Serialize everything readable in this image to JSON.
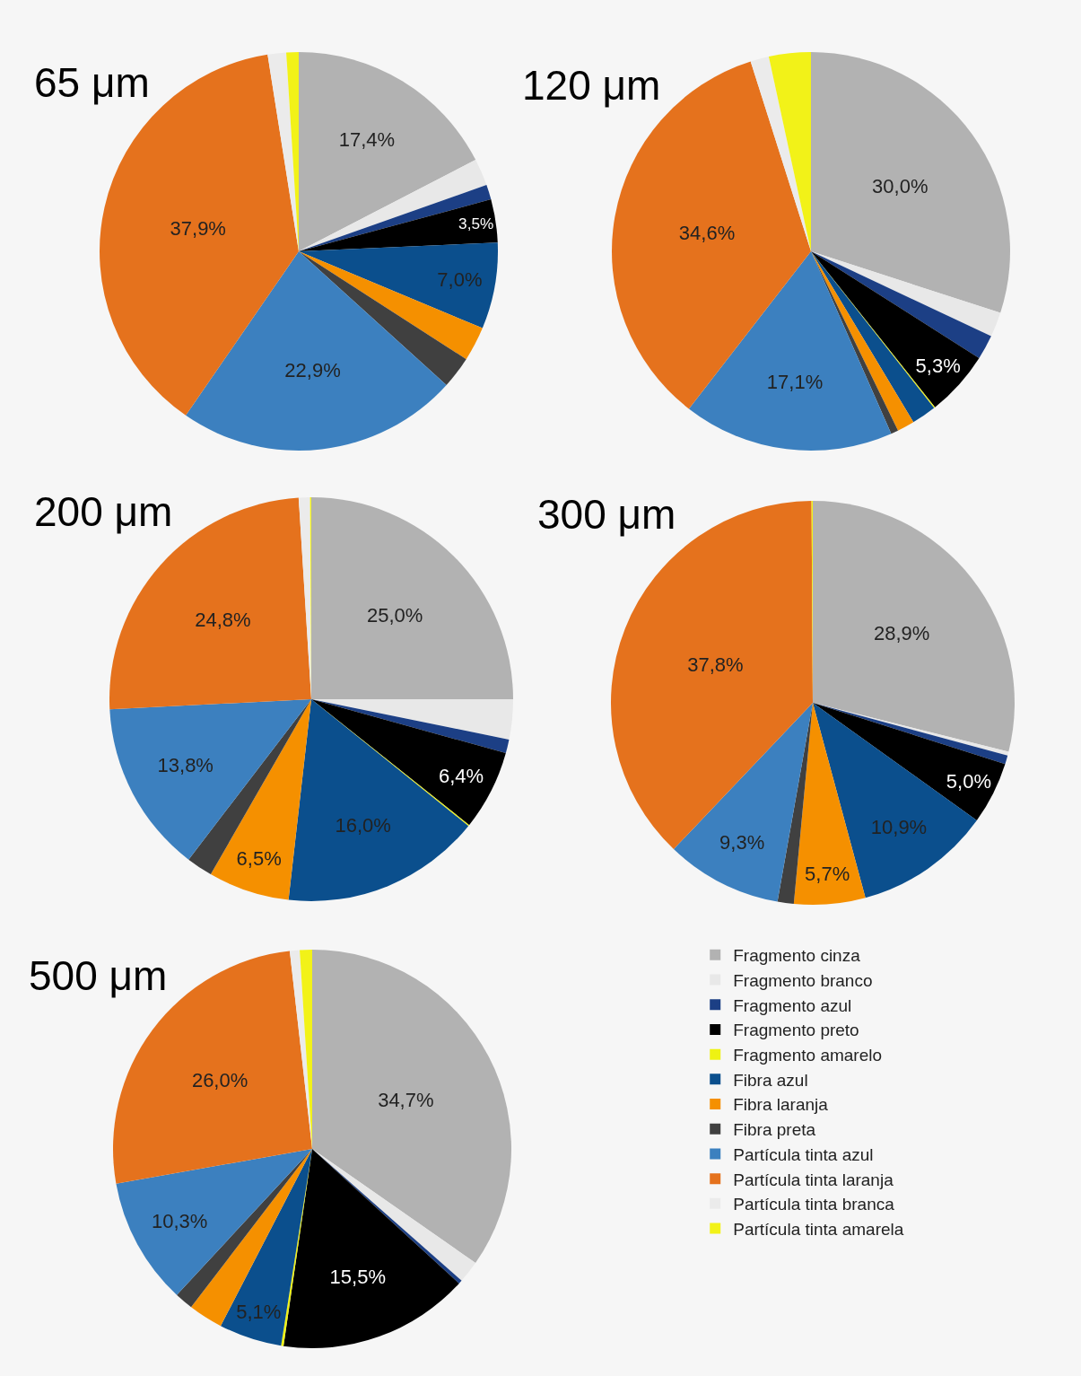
{
  "chart_data": [
    {
      "type": "pie",
      "title": "65 μm",
      "legend": "bottom right",
      "categories": [
        "Fragmento cinza",
        "Fragmento branco",
        "Fragmento azul",
        "Fragmento preto",
        "Fragmento amarelo",
        "Fibra azul",
        "Fibra laranja",
        "Fibra preta",
        "Partícula tinta azul",
        "Partícula tinta laranja",
        "Partícula tinta branca",
        "Partícula tinta amarela"
      ],
      "values": [
        17.4,
        2.2,
        1.2,
        3.5,
        0,
        7.0,
        2.8,
        2.6,
        22.9,
        37.9,
        1.5,
        1.0
      ],
      "value_labels": [
        "17,4%",
        null,
        null,
        "3,5%",
        null,
        "7,0%",
        null,
        null,
        "22,9%",
        "37,9%",
        null,
        null
      ],
      "colors": [
        "#b2b2b2",
        "#e8e8e8",
        "#1c3f85",
        "#000000",
        "#eef213",
        "#0b4f8d",
        "#f59000",
        "#404040",
        "#3c80bf",
        "#e5721d",
        "#ebebeb",
        "#f2f218"
      ]
    },
    {
      "type": "pie",
      "title": "120 μm",
      "legend": false,
      "categories": [
        null,
        null,
        null,
        null,
        null,
        null,
        null,
        null,
        null,
        null,
        null,
        null
      ],
      "values": [
        30.0,
        2.0,
        2.0,
        5.3,
        0.1,
        2.0,
        1.4,
        0.6,
        17.1,
        34.6,
        1.5,
        3.4
      ],
      "value_labels": [
        "30,0%",
        null,
        null,
        "5,3%",
        null,
        null,
        null,
        null,
        "17,1%",
        "34,6%",
        null,
        null
      ],
      "colors": [
        "#b2b2b2",
        "#e8e8e8",
        "#1c3f85",
        "#000000",
        "#eef213",
        "#0b4f8d",
        "#f59000",
        "#404040",
        "#3c80bf",
        "#e5721d",
        "#ebebeb",
        "#f2f218"
      ]
    },
    {
      "type": "pie",
      "title": "200 μm",
      "legend": false,
      "categories": [
        null,
        null,
        null,
        null,
        null,
        null,
        null,
        null,
        null,
        null,
        null,
        null
      ],
      "values": [
        25.0,
        3.2,
        1.1,
        6.4,
        0.1,
        16.0,
        6.5,
        2.1,
        13.8,
        24.8,
        0.9,
        0.1
      ],
      "value_labels": [
        "25,0%",
        null,
        null,
        "6,4%",
        null,
        "16,0%",
        "6,5%",
        null,
        "13,8%",
        "24,8%",
        null,
        null
      ],
      "colors": [
        "#b2b2b2",
        "#e8e8e8",
        "#1c3f85",
        "#000000",
        "#eef213",
        "#0b4f8d",
        "#f59000",
        "#404040",
        "#3c80bf",
        "#e5721d",
        "#ebebeb",
        "#f2f218"
      ]
    },
    {
      "type": "pie",
      "title": "300 μm",
      "legend": false,
      "categories": [
        null,
        null,
        null,
        null,
        null,
        null,
        null,
        null,
        null,
        null,
        null,
        null
      ],
      "values": [
        28.9,
        0.3,
        0.7,
        5.0,
        0,
        10.9,
        5.7,
        1.3,
        9.3,
        37.8,
        0,
        0.1
      ],
      "value_labels": [
        "28,9%",
        null,
        null,
        "5,0%",
        null,
        "10,9%",
        "5,7%",
        null,
        "9,3%",
        "37,8%",
        null,
        null
      ],
      "colors": [
        "#b2b2b2",
        "#e8e8e8",
        "#1c3f85",
        "#000000",
        "#eef213",
        "#0b4f8d",
        "#f59000",
        "#404040",
        "#3c80bf",
        "#e5721d",
        "#ebebeb",
        "#f2f218"
      ]
    },
    {
      "type": "pie",
      "title": "500 μm",
      "legend": false,
      "categories": [
        null,
        null,
        null,
        null,
        null,
        null,
        null,
        null,
        null,
        null,
        null,
        null
      ],
      "values": [
        34.7,
        1.8,
        0.3,
        15.5,
        0.2,
        5.1,
        2.8,
        1.5,
        10.3,
        26.0,
        0.8,
        1.0
      ],
      "value_labels": [
        "34,7%",
        null,
        null,
        "15,5%",
        null,
        "5,1%",
        null,
        null,
        "10,3%",
        "26,0%",
        null,
        null
      ],
      "colors": [
        "#b2b2b2",
        "#e8e8e8",
        "#1c3f85",
        "#000000",
        "#eef213",
        "#0b4f8d",
        "#f59000",
        "#404040",
        "#3c80bf",
        "#e5721d",
        "#ebebeb",
        "#f2f218"
      ]
    }
  ]
}
